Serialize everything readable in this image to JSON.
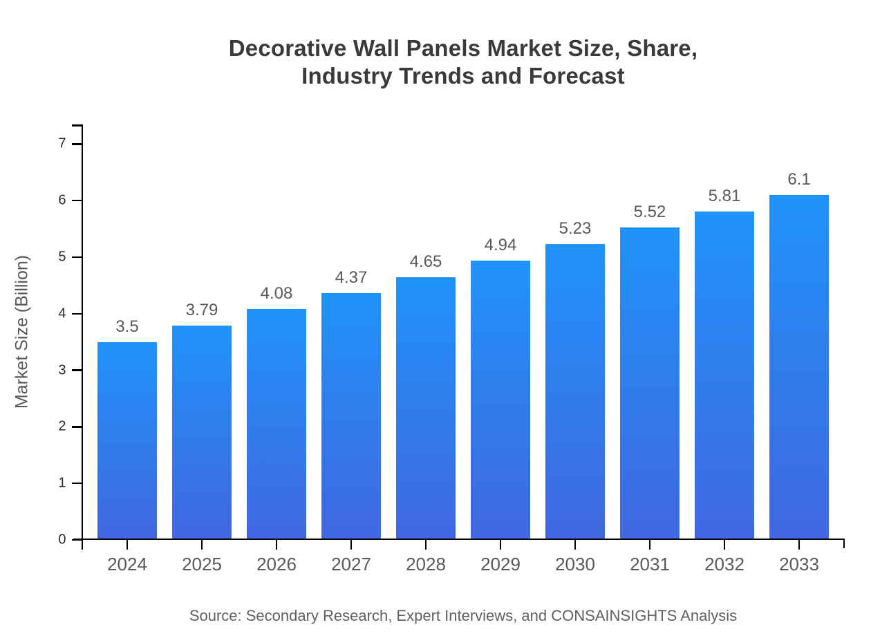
{
  "title": {
    "line1": "Decorative Wall Panels Market Size, Share,",
    "line2": "Industry Trends and Forecast"
  },
  "source": "Source: Secondary Research, Expert Interviews, and CONSAINSIGHTS Analysis",
  "chart_data": {
    "type": "bar",
    "title": "Decorative Wall Panels Market Size, Share, Industry Trends and Forecast",
    "categories": [
      "2024",
      "2025",
      "2026",
      "2027",
      "2028",
      "2029",
      "2030",
      "2031",
      "2032",
      "2033"
    ],
    "values": [
      3.5,
      3.79,
      4.08,
      4.37,
      4.65,
      4.94,
      5.23,
      5.52,
      5.81,
      6.1
    ],
    "value_labels": [
      "3.5",
      "3.79",
      "4.08",
      "4.37",
      "4.65",
      "4.94",
      "5.23",
      "5.52",
      "5.81",
      "6.1"
    ],
    "xlabel": "",
    "ylabel": "Market Size (Billion)",
    "ylim": [
      0,
      7.35
    ],
    "yticks": [
      0,
      1,
      2,
      3,
      4,
      5,
      6,
      7
    ],
    "grid": false,
    "legend": "none",
    "colors": {
      "bar_gradient_top": "#2093fa",
      "bar_gradient_bottom": "#4067e0",
      "axis": "#000000",
      "tick_label": "#595959",
      "title": "#3a3a3a"
    }
  }
}
